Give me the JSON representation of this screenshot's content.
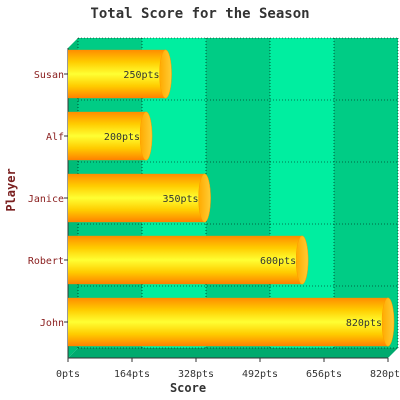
{
  "chart_data": {
    "type": "bar",
    "orientation": "horizontal",
    "title": "Total Score for the Season",
    "xlabel": "Score",
    "ylabel": "Player",
    "categories": [
      "Susan",
      "Alf",
      "Janice",
      "Robert",
      "John"
    ],
    "values": [
      250,
      200,
      350,
      600,
      820
    ],
    "value_suffix": "pts",
    "xlim": [
      0,
      820
    ],
    "x_ticks": [
      0,
      164,
      328,
      492,
      656,
      820
    ],
    "x_tick_labels": [
      "0pts",
      "164pts",
      "328pts",
      "492pts",
      "656pts",
      "820pts"
    ],
    "grid": true,
    "legend": "none",
    "colors": {
      "band_dark": "#00cc85",
      "band_light": "#00eea0",
      "bar_light": "#ffff33",
      "bar_dark": "#ff8800",
      "title": "#333333",
      "axis_label": "#7a2020",
      "category_label": "#8b2020",
      "tick_label": "#333333"
    }
  }
}
